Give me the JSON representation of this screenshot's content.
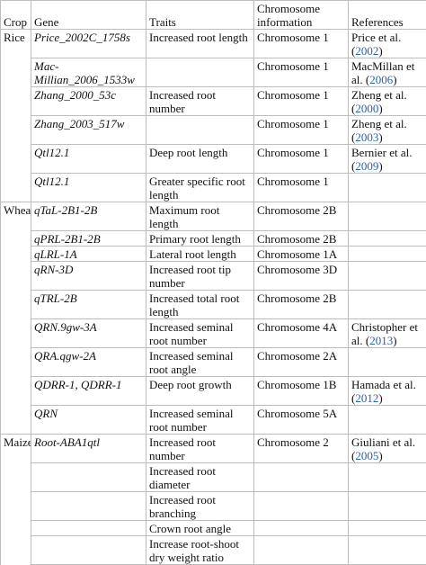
{
  "headers": [
    "Crop",
    "Gene",
    "Traits",
    "Chromosome information",
    "References"
  ],
  "rows": [
    {
      "crop": "Rice",
      "gene": "Price_2002C_1758s",
      "trait": "Increased root length",
      "chr": "Chromosome 1",
      "ref": "Price et al.",
      "year": "2002",
      "h": 30
    },
    {
      "crop": "",
      "gene": "Mac-Millian_2006_1533w",
      "trait": "",
      "chr": "Chromosome 1",
      "ref": "MacMillan et al.",
      "year": "2006",
      "h": 30
    },
    {
      "crop": "",
      "gene": "Zhang_2000_53c",
      "trait": "Increased root number",
      "chr": "Chromosome 1",
      "ref": "Zheng et al.",
      "year": "2000",
      "h": 30
    },
    {
      "crop": "",
      "gene": "Zhang_2003_517w",
      "trait": "",
      "chr": "Chromosome 1",
      "ref": "Zheng et al.",
      "year": "2003",
      "h": 30
    },
    {
      "crop": "",
      "gene": "Qtl12.1",
      "trait": "Deep root length",
      "chr": "Chromosome 1",
      "ref": "Bernier et al.",
      "year": "2009",
      "h": 30
    },
    {
      "crop": "",
      "gene": "Qtl12.1",
      "trait": "Greater specific root length",
      "chr": "Chromosome 1",
      "ref": "",
      "year": "",
      "h": 30
    },
    {
      "crop": "Wheat",
      "gene": "qTaL-2B1-2B",
      "trait": "Maximum root length",
      "chr": "Chromosome 2B",
      "ref": "",
      "year": "",
      "h": 16
    },
    {
      "crop": "",
      "gene": "qPRL-2B1-2B",
      "trait": "Primary root length",
      "chr": "Chromosome 2B",
      "ref": "",
      "year": "",
      "h": 16
    },
    {
      "crop": "",
      "gene": "qLRL-1A",
      "trait": "Lateral root length",
      "chr": "Chromosome 1A",
      "ref": "",
      "year": "",
      "h": 16
    },
    {
      "crop": "",
      "gene": "qRN-3D",
      "trait": "Increased root tip number",
      "chr": "Chromosome 3D",
      "ref": "",
      "year": "",
      "h": 30
    },
    {
      "crop": "",
      "gene": "qTRL-2B",
      "trait": "Increased total root length",
      "chr": "Chromosome 2B",
      "ref": "",
      "year": "",
      "h": 30
    },
    {
      "crop": "",
      "gene": "QRN.9gw-3A",
      "trait": "Increased seminal root number",
      "chr": "Chromosome 4A",
      "ref": "Christopher et al.",
      "year": "2013",
      "h": 30
    },
    {
      "crop": "",
      "gene": "QRA.qgw-2A",
      "trait": "Increased seminal root angle",
      "chr": "Chromosome 2A",
      "ref": "",
      "year": "",
      "h": 30
    },
    {
      "crop": "",
      "gene": "QDRR-1, QDRR-1",
      "trait": "Deep root growth",
      "chr": "Chromosome 1B",
      "ref": "Hamada et al.",
      "year": "2012",
      "h": 30
    },
    {
      "crop": "",
      "gene": "QRN",
      "trait": "Increased seminal root number",
      "chr": "Chromosome 5A",
      "ref": "",
      "year": "",
      "h": 30
    },
    {
      "crop": "Maize",
      "gene": "Root-ABA1qtl",
      "trait": "Increased root number",
      "chr": "Chromosome 2",
      "ref": "Giuliani et al.",
      "year": "2005",
      "h": 31
    },
    {
      "crop": "",
      "gene": "",
      "trait": "Increased root diameter",
      "chr": "",
      "ref": "",
      "year": "",
      "h": 31
    },
    {
      "crop": "",
      "gene": "",
      "trait": "Increased root branching",
      "chr": "",
      "ref": "",
      "year": "",
      "h": 31
    },
    {
      "crop": "",
      "gene": "",
      "trait": "Crown root angle",
      "chr": "",
      "ref": "",
      "year": "",
      "h": 17
    },
    {
      "crop": "",
      "gene": "",
      "trait": "Increase root-shoot dry weight ratio",
      "chr": "",
      "ref": "",
      "year": "",
      "h": 31
    }
  ]
}
